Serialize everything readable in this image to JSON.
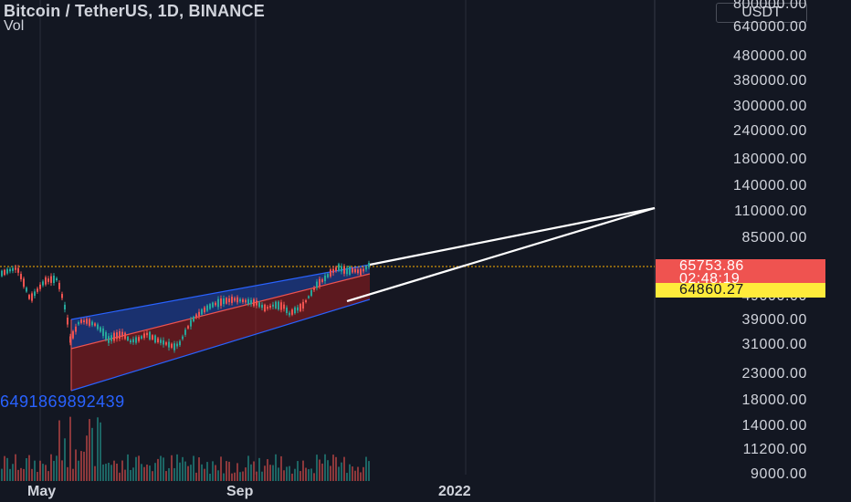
{
  "header": {
    "symbol_title": "Bitcoin / TetherUS, 1D, BINANCE",
    "volume_label": "Vol"
  },
  "price_scale": {
    "currency": "USDT",
    "labels": [
      "800000.00",
      "640000.00",
      "480000.00",
      "380000.00",
      "300000.00",
      "240000.00",
      "180000.00",
      "140000.00",
      "110000.00",
      "85000.00",
      "49000.00",
      "39000.00",
      "31000.00",
      "23000.00",
      "18000.00",
      "14000.00",
      "11200.00",
      "9000.00"
    ],
    "last_price": "65753.86",
    "countdown": "02:48:19",
    "reference_price": "64860.27"
  },
  "time_scale": {
    "labels": [
      "May",
      "Sep",
      "2022"
    ]
  },
  "annotation": {
    "ruler_value": "6491869892439"
  },
  "colors": {
    "background": "#131722",
    "up": "#26a69a",
    "down": "#ef5350",
    "channel_upper": "#2962ff",
    "channel_lower": "#b71c1c",
    "trendline": "#ffffff",
    "reference_line": "#ffeb3b"
  },
  "chart_data": {
    "type": "candlestick",
    "scale": "log",
    "price_range_usdt": [
      9000,
      800000
    ],
    "last_price_usdt": 65753.86,
    "reference_price_usdt": 64860.27,
    "x_axis": [
      "May",
      "Sep",
      "2022"
    ]
  }
}
